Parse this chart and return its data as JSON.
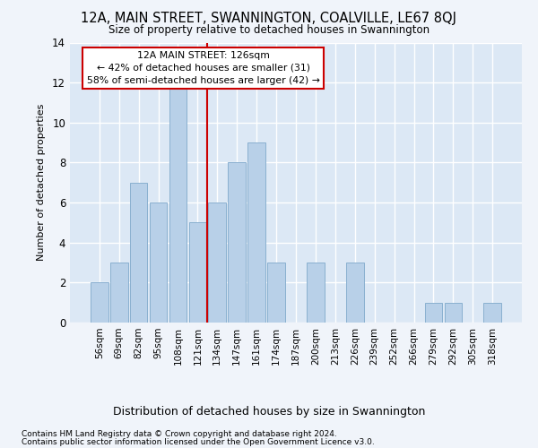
{
  "title": "12A, MAIN STREET, SWANNINGTON, COALVILLE, LE67 8QJ",
  "subtitle": "Size of property relative to detached houses in Swannington",
  "xlabel": "Distribution of detached houses by size in Swannington",
  "ylabel": "Number of detached properties",
  "categories": [
    "56sqm",
    "69sqm",
    "82sqm",
    "95sqm",
    "108sqm",
    "121sqm",
    "134sqm",
    "147sqm",
    "161sqm",
    "174sqm",
    "187sqm",
    "200sqm",
    "213sqm",
    "226sqm",
    "239sqm",
    "252sqm",
    "266sqm",
    "279sqm",
    "292sqm",
    "305sqm",
    "318sqm"
  ],
  "values": [
    2,
    3,
    7,
    6,
    12,
    5,
    6,
    8,
    9,
    3,
    0,
    3,
    0,
    3,
    0,
    0,
    0,
    1,
    1,
    0,
    1
  ],
  "bar_color": "#b8d0e8",
  "bar_edge_color": "#8ab0d0",
  "property_line_x": 5.5,
  "property_label": "12A MAIN STREET: 126sqm",
  "annotation_line1": "← 42% of detached houses are smaller (31)",
  "annotation_line2": "58% of semi-detached houses are larger (42) →",
  "annotation_box_color": "#ffffff",
  "annotation_box_edge_color": "#cc0000",
  "line_color": "#cc0000",
  "ylim": [
    0,
    14
  ],
  "yticks": [
    0,
    2,
    4,
    6,
    8,
    10,
    12,
    14
  ],
  "footnote1": "Contains HM Land Registry data © Crown copyright and database right 2024.",
  "footnote2": "Contains public sector information licensed under the Open Government Licence v3.0.",
  "fig_facecolor": "#f0f4fa",
  "plot_facecolor": "#dce8f5"
}
